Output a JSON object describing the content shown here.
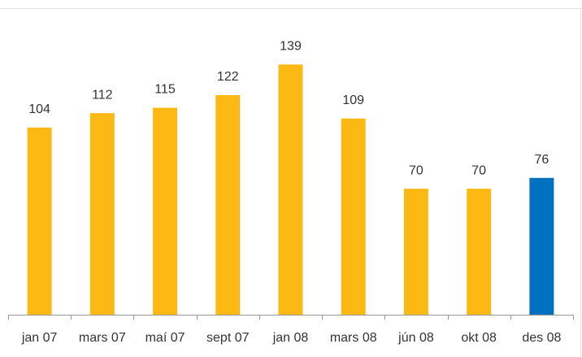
{
  "chart_data": {
    "type": "bar",
    "categories": [
      "jan 07",
      "mars 07",
      "maí 07",
      "sept 07",
      "jan 08",
      "mars 08",
      "jún 08",
      "okt 08",
      "des 08"
    ],
    "values": [
      104,
      112,
      115,
      122,
      139,
      109,
      70,
      70,
      76
    ],
    "colors": [
      "#fdb913",
      "#fdb913",
      "#fdb913",
      "#fdb913",
      "#fdb913",
      "#fdb913",
      "#fdb913",
      "#fdb913",
      "#0070c0"
    ],
    "ylim": [
      0,
      150
    ]
  }
}
